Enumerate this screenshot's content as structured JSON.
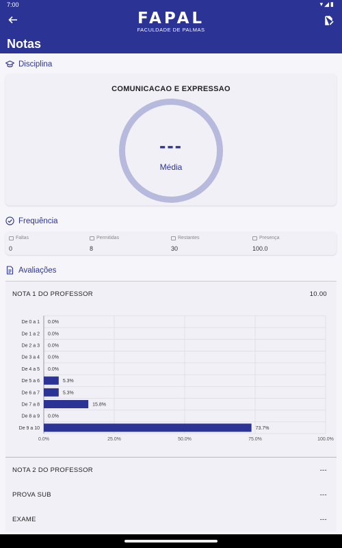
{
  "status_bar": {
    "time": "7:00",
    "icons": "▾◢▮"
  },
  "header": {
    "logo_main": "FAPAL",
    "logo_sub": "FACULDADE DE PALMAS",
    "title": "Notas"
  },
  "disciplina": {
    "section_label": "Disciplina",
    "name": "COMUNICACAO E EXPRESSAO",
    "average_value": "---",
    "average_label": "Média"
  },
  "frequencia": {
    "section_label": "Frequência",
    "items": [
      {
        "label": "Faltas",
        "value": "0"
      },
      {
        "label": "Permitidas",
        "value": "8"
      },
      {
        "label": "Restantes",
        "value": "30"
      },
      {
        "label": "Presença",
        "value": "100.0"
      }
    ]
  },
  "avaliacoes": {
    "section_label": "Avaliações",
    "items": [
      {
        "name": "NOTA 1 DO PROFESSOR",
        "value": "10.00"
      },
      {
        "name": "NOTA 2 DO PROFESSOR",
        "value": "---"
      },
      {
        "name": "PROVA SUB",
        "value": "---"
      },
      {
        "name": "EXAME",
        "value": "---"
      }
    ]
  },
  "chart_data": {
    "type": "bar",
    "orientation": "horizontal",
    "categories": [
      "De 0 a 1",
      "De 1 a 2",
      "De 2 a 3",
      "De 3 a 4",
      "De 4 a 5",
      "De 5 a 6",
      "De 6 a 7",
      "De 7 a 8",
      "De 8 a 9",
      "De 9 a 10"
    ],
    "values": [
      0.0,
      0.0,
      0.0,
      0.0,
      0.0,
      5.3,
      5.3,
      15.8,
      0.0,
      73.7
    ],
    "value_labels": [
      "0.0%",
      "0.0%",
      "0.0%",
      "0.0%",
      "0.0%",
      "5.3%",
      "5.3%",
      "15.8%",
      "0.0%",
      "73.7%"
    ],
    "xlim": [
      0,
      100
    ],
    "x_ticks": [
      "0.0%",
      "25.0%",
      "50.0%",
      "75.0%",
      "100.0%"
    ],
    "grid": true,
    "bar_color": "#2b3394"
  },
  "colors": {
    "primary": "#2b3394",
    "ring": "#b7b9dd",
    "background": "#f6f5fa"
  },
  "icons": {
    "back": "arrow-left-icon",
    "edit": "edit-document-icon",
    "disciplina": "graduation-cap-icon",
    "frequencia": "check-circle-icon",
    "avaliacoes": "document-icon"
  }
}
